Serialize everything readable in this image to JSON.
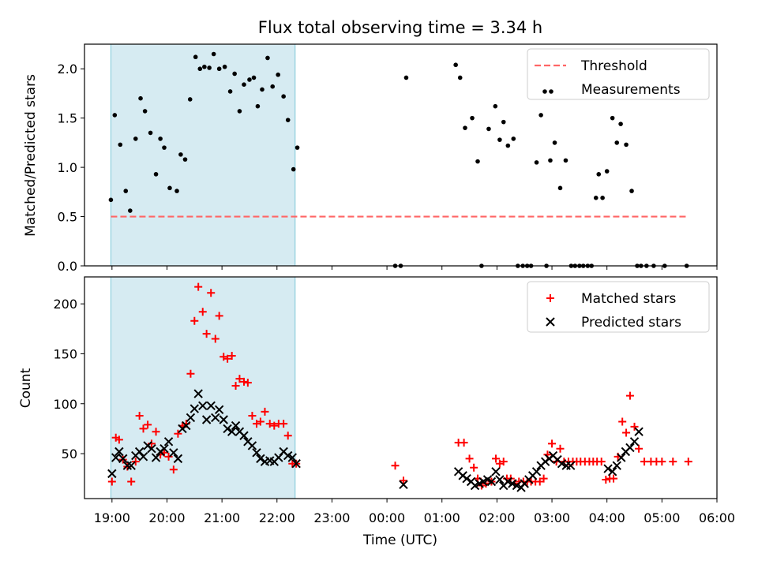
{
  "chart_data": [
    {
      "type": "scatter",
      "title": "Flux total observing time = 3.34 h",
      "ylabel": "Matched/Predicted stars",
      "xlim_hours": [
        18.5,
        30.0
      ],
      "ylim": [
        0,
        2.25
      ],
      "yticks": [
        0.0,
        0.5,
        1.0,
        1.5,
        2.0
      ],
      "ytick_labels": [
        "0.0",
        "0.5",
        "1.0",
        "1.5",
        "2.0"
      ],
      "shaded_span_hours": [
        18.98,
        22.33
      ],
      "shaded_color": "#add8e6",
      "threshold": {
        "name": "Threshold",
        "value": 0.5,
        "x_range_hours": [
          18.98,
          29.45
        ],
        "color": "#ff6666"
      },
      "series": [
        {
          "name": "Measurements",
          "color": "#000000",
          "x": [
            18.98,
            19.05,
            19.15,
            19.25,
            19.33,
            19.43,
            19.52,
            19.6,
            19.7,
            19.8,
            19.88,
            19.95,
            20.05,
            20.18,
            20.25,
            20.33,
            20.42,
            20.52,
            20.6,
            20.68,
            20.77,
            20.85,
            20.95,
            21.05,
            21.15,
            21.23,
            21.32,
            21.4,
            21.5,
            21.58,
            21.65,
            21.73,
            21.83,
            21.92,
            22.02,
            22.12,
            22.2,
            22.3,
            22.37,
            24.15,
            24.25,
            24.35,
            25.25,
            25.33,
            25.42,
            25.55,
            25.65,
            25.72,
            25.85,
            25.97,
            26.05,
            26.12,
            26.2,
            26.3,
            26.38,
            26.47,
            26.55,
            26.62,
            26.72,
            26.8,
            26.9,
            26.97,
            27.05,
            27.15,
            27.25,
            27.35,
            27.42,
            27.5,
            27.57,
            27.65,
            27.72,
            27.8,
            27.85,
            27.92,
            28.0,
            28.1,
            28.18,
            28.25,
            28.35,
            28.45,
            28.55,
            28.62,
            28.72,
            28.85,
            29.05,
            29.45
          ],
          "y": [
            0.67,
            1.53,
            1.23,
            0.76,
            0.56,
            1.29,
            1.7,
            1.57,
            1.35,
            0.93,
            1.29,
            1.2,
            0.79,
            0.76,
            1.13,
            1.08,
            1.69,
            2.12,
            2.0,
            2.02,
            2.01,
            2.15,
            2.0,
            2.02,
            1.77,
            1.95,
            1.57,
            1.84,
            1.89,
            1.91,
            1.62,
            1.79,
            2.11,
            1.82,
            1.94,
            1.72,
            1.48,
            0.98,
            1.2,
            0.0,
            0.0,
            1.91,
            2.04,
            1.91,
            1.4,
            1.5,
            1.06,
            0.0,
            1.39,
            1.62,
            1.28,
            1.46,
            1.22,
            1.29,
            0.0,
            0.0,
            0.0,
            0.0,
            1.05,
            1.53,
            0.0,
            1.07,
            1.25,
            0.79,
            1.07,
            0.0,
            0.0,
            0.0,
            0.0,
            0.0,
            0.0,
            0.69,
            0.93,
            0.69,
            0.96,
            1.5,
            1.25,
            1.44,
            1.23,
            0.76,
            0.0,
            0.0,
            0.0,
            0.0,
            0.0,
            0.0
          ]
        }
      ],
      "legend": [
        "Threshold",
        "Measurements"
      ],
      "legend_position": "upper right"
    },
    {
      "type": "scatter",
      "xlabel": "Time (UTC)",
      "ylabel": "Count",
      "xlim_hours": [
        18.5,
        30.0
      ],
      "ylim": [
        5,
        227
      ],
      "yticks": [
        50,
        100,
        150,
        200
      ],
      "xticks_hours": [
        19,
        20,
        21,
        22,
        23,
        24,
        25,
        26,
        27,
        28,
        29,
        30
      ],
      "xtick_labels": [
        "19:00",
        "20:00",
        "21:00",
        "22:00",
        "23:00",
        "00:00",
        "01:00",
        "02:00",
        "03:00",
        "04:00",
        "05:00",
        "06:00"
      ],
      "shaded_span_hours": [
        18.98,
        22.33
      ],
      "series": [
        {
          "name": "Matched stars",
          "marker": "+",
          "color": "#ff0000",
          "x": [
            19.0,
            19.07,
            19.13,
            19.2,
            19.28,
            19.35,
            19.43,
            19.5,
            19.57,
            19.65,
            19.72,
            19.8,
            19.88,
            19.95,
            20.03,
            20.12,
            20.2,
            20.28,
            20.35,
            20.43,
            20.5,
            20.57,
            20.65,
            20.72,
            20.8,
            20.88,
            20.95,
            21.03,
            21.1,
            21.18,
            21.25,
            21.32,
            21.4,
            21.47,
            21.55,
            21.63,
            21.7,
            21.78,
            21.87,
            21.95,
            22.03,
            22.12,
            22.2,
            22.28,
            22.35,
            24.15,
            24.3,
            25.3,
            25.4,
            25.5,
            25.58,
            25.65,
            25.72,
            25.8,
            25.9,
            25.98,
            26.05,
            26.12,
            26.18,
            26.25,
            26.32,
            26.4,
            26.48,
            26.55,
            26.62,
            26.7,
            26.78,
            26.85,
            26.92,
            27.0,
            27.08,
            27.15,
            27.22,
            27.3,
            27.38,
            27.45,
            27.52,
            27.6,
            27.68,
            27.75,
            27.82,
            27.9,
            27.98,
            28.05,
            28.12,
            28.2,
            28.28,
            28.35,
            28.42,
            28.5,
            28.58,
            28.68,
            28.8,
            28.9,
            29.0,
            29.2,
            29.48
          ],
          "y": [
            22,
            66,
            64,
            44,
            37,
            22,
            42,
            88,
            75,
            79,
            60,
            72,
            49,
            51,
            47,
            34,
            70,
            78,
            80,
            130,
            183,
            217,
            192,
            170,
            211,
            165,
            188,
            147,
            145,
            148,
            118,
            125,
            122,
            121,
            88,
            80,
            82,
            92,
            80,
            78,
            80,
            80,
            68,
            40,
            40,
            38,
            23,
            61,
            61,
            45,
            36,
            25,
            18,
            20,
            22,
            45,
            40,
            42,
            25,
            25,
            20,
            22,
            22,
            22,
            22,
            22,
            22,
            25,
            49,
            60,
            42,
            55,
            42,
            42,
            42,
            42,
            42,
            42,
            42,
            42,
            42,
            42,
            24,
            25,
            25,
            47,
            82,
            71,
            108,
            77,
            55,
            42,
            42,
            42,
            42,
            42,
            42
          ]
        },
        {
          "name": "Predicted stars",
          "marker": "x",
          "color": "#000000",
          "x": [
            19.0,
            19.07,
            19.13,
            19.2,
            19.28,
            19.35,
            19.43,
            19.5,
            19.57,
            19.65,
            19.72,
            19.8,
            19.88,
            19.95,
            20.03,
            20.12,
            20.2,
            20.28,
            20.35,
            20.43,
            20.5,
            20.57,
            20.65,
            20.72,
            20.8,
            20.88,
            20.95,
            21.03,
            21.1,
            21.18,
            21.25,
            21.32,
            21.4,
            21.47,
            21.55,
            21.63,
            21.7,
            21.78,
            21.87,
            21.95,
            22.03,
            22.12,
            22.2,
            22.28,
            22.35,
            24.3,
            25.3,
            25.38,
            25.45,
            25.53,
            25.6,
            25.68,
            25.75,
            25.83,
            25.9,
            25.98,
            26.05,
            26.12,
            26.2,
            26.28,
            26.36,
            26.44,
            26.5,
            26.58,
            26.65,
            26.72,
            26.8,
            26.88,
            26.95,
            27.02,
            27.1,
            27.18,
            27.26,
            27.34,
            28.02,
            28.1,
            28.18,
            28.26,
            28.34,
            28.42,
            28.5,
            28.58
          ],
          "y": [
            30,
            46,
            52,
            45,
            38,
            38,
            48,
            52,
            47,
            58,
            55,
            46,
            52,
            55,
            62,
            51,
            45,
            75,
            78,
            86,
            95,
            110,
            98,
            84,
            98,
            86,
            94,
            84,
            75,
            72,
            78,
            72,
            68,
            62,
            58,
            51,
            45,
            42,
            43,
            42,
            46,
            52,
            48,
            46,
            40,
            19,
            32,
            28,
            25,
            22,
            18,
            20,
            22,
            24,
            22,
            32,
            24,
            18,
            22,
            20,
            18,
            16,
            20,
            24,
            28,
            32,
            38,
            42,
            45,
            48,
            44,
            40,
            38,
            38,
            35,
            32,
            38,
            46,
            52,
            56,
            62,
            72
          ]
        }
      ],
      "legend": [
        "Matched stars",
        "Predicted stars"
      ],
      "legend_position": "upper right"
    }
  ]
}
